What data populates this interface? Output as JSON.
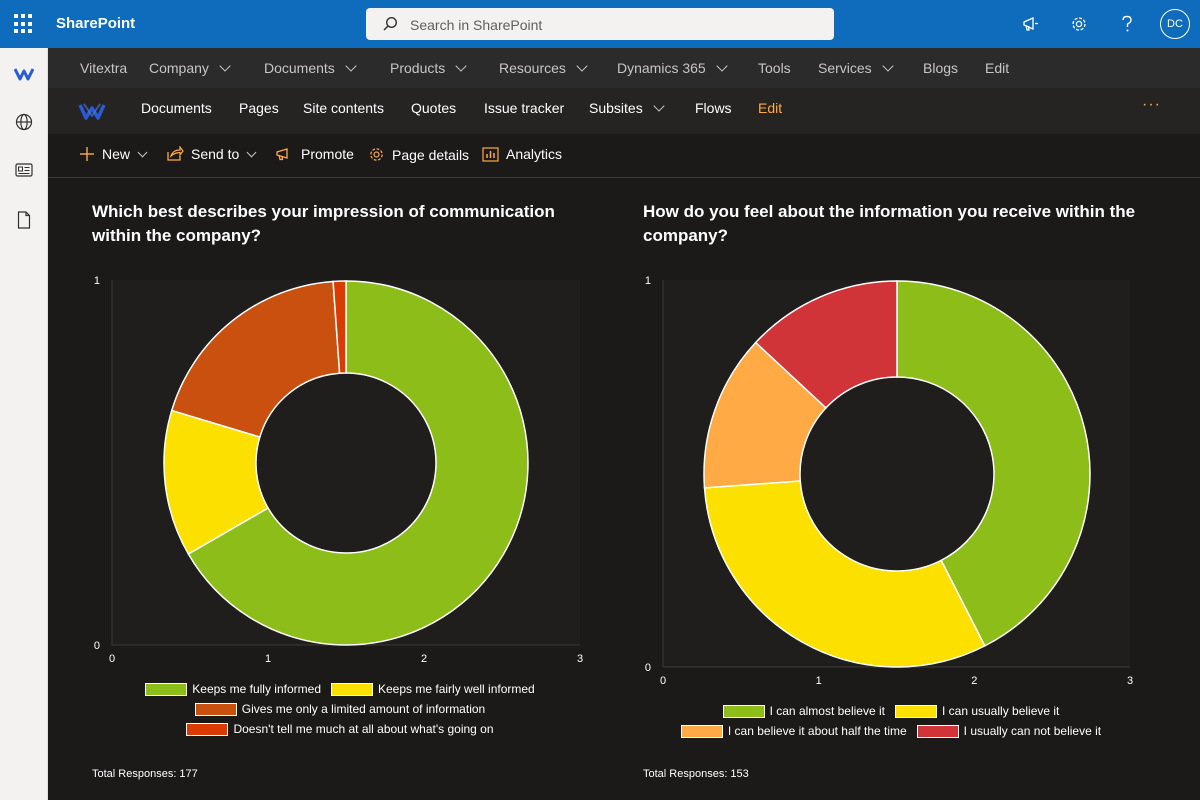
{
  "suite": {
    "app_name": "SharePoint",
    "search_placeholder": "Search in SharePoint",
    "avatar_initials": "DC",
    "icons": [
      "waffle-icon",
      "megaphone-icon",
      "gear-icon",
      "help-icon"
    ]
  },
  "hub_nav": {
    "items": [
      {
        "label": "Vitextra",
        "dropdown": false
      },
      {
        "label": "Company",
        "dropdown": true
      },
      {
        "label": "Documents",
        "dropdown": true
      },
      {
        "label": "Products",
        "dropdown": true
      },
      {
        "label": "Resources",
        "dropdown": true
      },
      {
        "label": "Dynamics 365",
        "dropdown": true
      },
      {
        "label": "Tools",
        "dropdown": false
      },
      {
        "label": "Services",
        "dropdown": true
      },
      {
        "label": "Blogs",
        "dropdown": false
      },
      {
        "label": "Edit",
        "dropdown": false
      }
    ]
  },
  "site_nav": {
    "items": [
      {
        "label": "Documents"
      },
      {
        "label": "Pages"
      },
      {
        "label": "Site contents"
      },
      {
        "label": "Quotes"
      },
      {
        "label": "Issue tracker"
      },
      {
        "label": "Subsites",
        "dropdown": true
      },
      {
        "label": "Flows"
      },
      {
        "label": "Edit",
        "accent": true
      }
    ],
    "more_label": "···"
  },
  "command_bar": {
    "new_label": "New",
    "send_to_label": "Send to",
    "promote_label": "Promote",
    "page_details_label": "Page details",
    "analytics_label": "Analytics"
  },
  "colors": {
    "accent": "#ffaa44",
    "suite_bar": "#0f6cbd"
  },
  "charts": {
    "left": {
      "title": "Which best describes your impression of communication within the company?",
      "total": "Total Responses: 177"
    },
    "right": {
      "title": "How do you feel about the information you receive within the company?",
      "total": "Total Responses: 153"
    }
  },
  "chart_data": [
    {
      "type": "pie",
      "title": "Which best describes your impression of communication within the company?",
      "donut": true,
      "slices": [
        {
          "label": "Keeps me fully informed",
          "value": 118,
          "color": "#8cbd18"
        },
        {
          "label": "Keeps me fairly well informed",
          "value": 23,
          "color": "#fce100"
        },
        {
          "label": "Gives me only a limited amount of information",
          "value": 34,
          "color": "#ca5010"
        },
        {
          "label": "Doesn't tell me much at all about what's going on",
          "value": 2,
          "color": "#da3b01"
        }
      ],
      "axis_ticks_x": [
        "0",
        "1",
        "2",
        "3"
      ],
      "axis_ticks_y": [
        "1",
        "0"
      ],
      "total_responses": 177
    },
    {
      "type": "pie",
      "title": "How do you feel about the information you receive within the company?",
      "donut": true,
      "slices": [
        {
          "label": "I can almost believe it",
          "value": 65,
          "color": "#8cbd18"
        },
        {
          "label": "I can usually believe it",
          "value": 48,
          "color": "#fce100"
        },
        {
          "label": "I can believe it about half the time",
          "value": 20,
          "color": "#ffaa44"
        },
        {
          "label": "I usually can not believe it",
          "value": 20,
          "color": "#d13438"
        }
      ],
      "axis_ticks_x": [
        "0",
        "1",
        "2",
        "3"
      ],
      "axis_ticks_y": [
        "1",
        "0"
      ],
      "total_responses": 153
    }
  ]
}
